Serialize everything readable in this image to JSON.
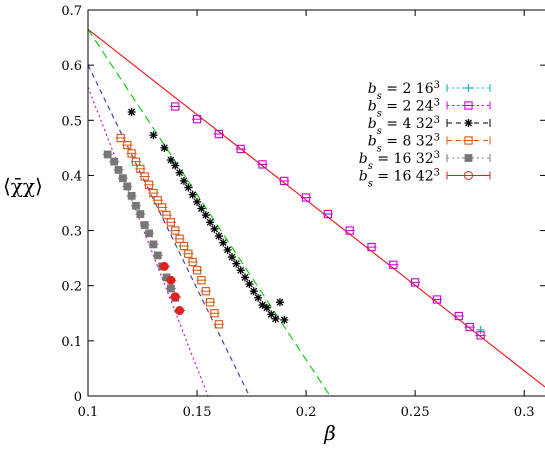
{
  "chart_data": {
    "type": "scatter",
    "xlabel": "β",
    "ylabel": "⟨χ̄χ⟩",
    "xlim": [
      0.1,
      0.31
    ],
    "ylim": [
      0,
      0.7
    ],
    "xticks": [
      0.1,
      0.15,
      0.2,
      0.25,
      0.3
    ],
    "yticks": [
      0,
      0.1,
      0.2,
      0.3,
      0.4,
      0.5,
      0.6,
      0.7
    ],
    "legend_position": "top-right",
    "fit_lines": [
      {
        "color": "#ee1111",
        "dash": "solid",
        "x": [
          0.1,
          0.31
        ],
        "y": [
          0.665,
          0.015
        ]
      },
      {
        "color": "#00cc00",
        "dash": "8,5",
        "x": [
          0.1,
          0.211
        ],
        "y": [
          0.665,
          0.0
        ]
      },
      {
        "color": "#3333cc",
        "dash": "5,4",
        "x": [
          0.1,
          0.174
        ],
        "y": [
          0.6,
          0.0
        ]
      },
      {
        "color": "#cc00cc",
        "dash": "2,3",
        "x": [
          0.1,
          0.155
        ],
        "y": [
          0.56,
          0.0
        ]
      }
    ],
    "series": [
      {
        "name": "b_s = 2  16^3",
        "name_main": "b",
        "name_sub": "s",
        "name_rest": " = 2  16",
        "name_sup": "3",
        "marker": "plus",
        "color": "#00bbbb",
        "dash": "2,3",
        "x": [
          0.28
        ],
        "y": [
          0.12
        ]
      },
      {
        "name": "b_s = 2  24^3",
        "name_main": "b",
        "name_sub": "s",
        "name_rest": " = 2  24",
        "name_sup": "3",
        "marker": "square-open",
        "color": "#cc00cc",
        "dash": "2,3",
        "x": [
          0.14,
          0.15,
          0.16,
          0.17,
          0.18,
          0.19,
          0.2,
          0.21,
          0.22,
          0.23,
          0.24,
          0.25,
          0.26,
          0.27,
          0.275,
          0.28
        ],
        "y": [
          0.525,
          0.502,
          0.475,
          0.448,
          0.42,
          0.39,
          0.36,
          0.33,
          0.3,
          0.27,
          0.238,
          0.206,
          0.175,
          0.145,
          0.125,
          0.11
        ]
      },
      {
        "name": "b_s = 4  32^3",
        "name_main": "b",
        "name_sub": "s",
        "name_rest": " = 4  32",
        "name_sup": "3",
        "marker": "star",
        "color": "#000000",
        "dash": "5,4",
        "x": [
          0.12,
          0.13,
          0.135,
          0.138,
          0.14,
          0.142,
          0.144,
          0.146,
          0.148,
          0.15,
          0.152,
          0.154,
          0.156,
          0.158,
          0.16,
          0.162,
          0.164,
          0.166,
          0.168,
          0.17,
          0.172,
          0.174,
          0.176,
          0.178,
          0.18,
          0.182,
          0.184,
          0.186,
          0.188,
          0.19
        ],
        "y": [
          0.515,
          0.473,
          0.45,
          0.428,
          0.418,
          0.405,
          0.39,
          0.378,
          0.365,
          0.352,
          0.34,
          0.328,
          0.315,
          0.303,
          0.29,
          0.278,
          0.265,
          0.252,
          0.24,
          0.228,
          0.215,
          0.203,
          0.19,
          0.178,
          0.165,
          0.16,
          0.148,
          0.14,
          0.17,
          0.138
        ]
      },
      {
        "name": "b_s = 8  32^3",
        "name_main": "b",
        "name_sub": "s",
        "name_rest": " = 8  32",
        "name_sup": "3",
        "marker": "square-open",
        "color": "#dd5511",
        "dash": "5,4",
        "x": [
          0.115,
          0.118,
          0.12,
          0.122,
          0.124,
          0.126,
          0.128,
          0.13,
          0.132,
          0.134,
          0.136,
          0.138,
          0.14,
          0.142,
          0.144,
          0.146,
          0.148,
          0.15,
          0.152,
          0.154,
          0.156,
          0.158,
          0.16
        ],
        "y": [
          0.468,
          0.455,
          0.44,
          0.425,
          0.412,
          0.398,
          0.383,
          0.368,
          0.355,
          0.342,
          0.328,
          0.315,
          0.3,
          0.285,
          0.272,
          0.258,
          0.243,
          0.228,
          0.21,
          0.19,
          0.17,
          0.15,
          0.13
        ]
      },
      {
        "name": "b_s = 16  32^3",
        "name_main": "b",
        "name_sub": "s",
        "name_rest": " = 16  32",
        "name_sup": "3",
        "marker": "square-filled",
        "color": "#777777",
        "dash": "2,3",
        "x": [
          0.109,
          0.112,
          0.114,
          0.116,
          0.118,
          0.12,
          0.122,
          0.124,
          0.126,
          0.128,
          0.13,
          0.132,
          0.134,
          0.136,
          0.138,
          0.14
        ],
        "y": [
          0.438,
          0.425,
          0.41,
          0.395,
          0.38,
          0.363,
          0.345,
          0.33,
          0.31,
          0.295,
          0.275,
          0.255,
          0.235,
          0.215,
          0.195,
          0.178
        ]
      },
      {
        "name": "b_s = 16  42^3",
        "name_main": "b",
        "name_sub": "s",
        "name_rest": " = 16  42",
        "name_sup": "3",
        "marker": "circle-filled",
        "color": "#dd2222",
        "dash": "solid",
        "x": [
          0.135,
          0.138,
          0.14,
          0.142
        ],
        "y": [
          0.235,
          0.21,
          0.18,
          0.155
        ]
      }
    ]
  }
}
